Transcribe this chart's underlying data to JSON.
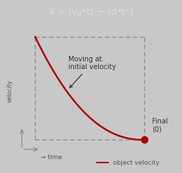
{
  "title_text": "X = (v$_0$*t) – (d*t$^2$)",
  "title_bg": "#696969",
  "title_color": "#e0e0e0",
  "outer_bg": "#c8c8c8",
  "inner_bg": "#e8e8e8",
  "curve_color": "#aa0000",
  "curve_linewidth": 1.8,
  "dot_color": "#aa0000",
  "dot_size": 45,
  "xlabel": "→ time",
  "ylabel": "velocity",
  "annotation_text": "Moving at\ninitial velocity",
  "final_label": "Final\n(0)",
  "legend_label": "object velocity",
  "dash_color": "#888888",
  "arrow_color": "#888888",
  "text_color": "#555555",
  "annot_color": "#333333"
}
